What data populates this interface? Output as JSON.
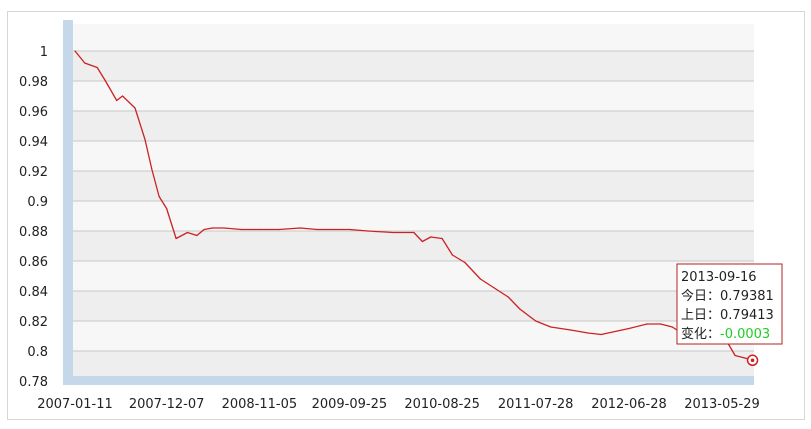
{
  "chart_data": {
    "type": "line",
    "title": "",
    "xlabel": "",
    "ylabel": "",
    "ylim": [
      0.775,
      1.0
    ],
    "grid": true,
    "x_ticks": [
      "2007-01-11",
      "2007-12-07",
      "2008-11-05",
      "2009-09-25",
      "2010-08-25",
      "2011-07-28",
      "2012-06-28",
      "2013-05-29"
    ],
    "y_ticks": [
      1,
      0.98,
      0.96,
      0.94,
      0.92,
      0.9,
      0.88,
      0.86,
      0.84,
      0.82,
      0.8,
      0.78
    ],
    "y_tick_labels": [
      "1",
      "0.98",
      "0.96",
      "0.94",
      "0.92",
      "0.9",
      "0.88",
      "0.86",
      "0.84",
      "0.82",
      "0.8",
      "0.78"
    ],
    "series": [
      {
        "color": "#cc2222",
        "x": [
          "2007-01-11",
          "2007-02-15",
          "2007-04-01",
          "2007-05-01",
          "2007-06-10",
          "2007-07-01",
          "2007-08-15",
          "2007-09-20",
          "2007-10-15",
          "2007-11-10",
          "2007-12-07",
          "2008-01-10",
          "2008-02-20",
          "2008-03-25",
          "2008-04-20",
          "2008-05-20",
          "2008-07-01",
          "2008-09-01",
          "2008-11-05",
          "2009-01-15",
          "2009-04-01",
          "2009-06-01",
          "2009-09-25",
          "2009-12-01",
          "2010-03-01",
          "2010-05-15",
          "2010-06-15",
          "2010-07-15",
          "2010-08-25",
          "2010-10-01",
          "2010-11-15",
          "2011-01-10",
          "2011-03-01",
          "2011-04-20",
          "2011-06-01",
          "2011-07-28",
          "2011-09-20",
          "2011-12-01",
          "2012-02-01",
          "2012-03-20",
          "2012-06-28",
          "2012-09-01",
          "2012-10-20",
          "2012-12-01",
          "2013-01-20",
          "2013-03-10",
          "2013-05-29",
          "2013-07-15",
          "2013-09-16"
        ],
        "y": [
          1.0,
          0.992,
          0.989,
          0.98,
          0.967,
          0.97,
          0.962,
          0.941,
          0.921,
          0.903,
          0.895,
          0.875,
          0.879,
          0.877,
          0.881,
          0.882,
          0.882,
          0.881,
          0.881,
          0.881,
          0.882,
          0.881,
          0.881,
          0.88,
          0.879,
          0.879,
          0.873,
          0.876,
          0.875,
          0.864,
          0.859,
          0.848,
          0.842,
          0.836,
          0.828,
          0.82,
          0.816,
          0.814,
          0.812,
          0.811,
          0.815,
          0.818,
          0.818,
          0.816,
          0.81,
          0.812,
          0.812,
          0.797,
          0.794
        ]
      }
    ],
    "marker": {
      "date": "2013-09-16",
      "value": 0.79381
    }
  },
  "tooltip": {
    "date": "2013-09-16",
    "today_label": "今日：",
    "today_value": "0.79381",
    "prev_label": "上日：",
    "prev_value": "0.79413",
    "change_label": "变化：",
    "change_value": "-0.0003",
    "change_color": "#22cc22",
    "border_color": "#b22222"
  }
}
